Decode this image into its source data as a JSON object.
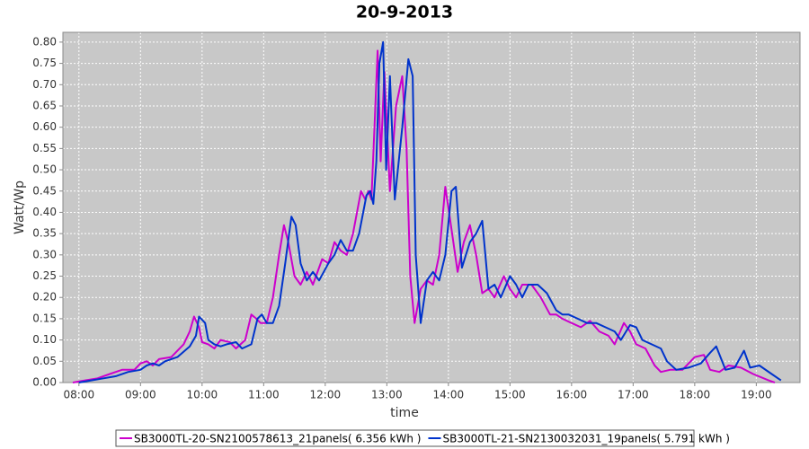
{
  "chart_data": {
    "type": "line",
    "title": "20-9-2013",
    "x_label": "time",
    "y_label": "Watt/Wp",
    "xlim": [
      7.74,
      19.71
    ],
    "ylim": [
      0,
      0.823
    ],
    "xticks": [
      {
        "value": 8,
        "label": "08:00"
      },
      {
        "value": 9,
        "label": "09:00"
      },
      {
        "value": 10,
        "label": "10:00"
      },
      {
        "value": 11,
        "label": "11:00"
      },
      {
        "value": 12,
        "label": "12:00"
      },
      {
        "value": 13,
        "label": "13:00"
      },
      {
        "value": 14,
        "label": "14:00"
      },
      {
        "value": 15,
        "label": "15:00"
      },
      {
        "value": 16,
        "label": "16:00"
      },
      {
        "value": 17,
        "label": "17:00"
      },
      {
        "value": 18,
        "label": "18:00"
      },
      {
        "value": 19,
        "label": "19:00"
      }
    ],
    "yticks": [
      {
        "value": 0,
        "label": "0.00"
      },
      {
        "value": 0.05,
        "label": "0.05"
      },
      {
        "value": 0.1,
        "label": "0.10"
      },
      {
        "value": 0.15,
        "label": "0.15"
      },
      {
        "value": 0.2,
        "label": "0.20"
      },
      {
        "value": 0.25,
        "label": "0.25"
      },
      {
        "value": 0.3,
        "label": "0.30"
      },
      {
        "value": 0.35,
        "label": "0.35"
      },
      {
        "value": 0.4,
        "label": "0.40"
      },
      {
        "value": 0.45,
        "label": "0.45"
      },
      {
        "value": 0.5,
        "label": "0.50"
      },
      {
        "value": 0.55,
        "label": "0.55"
      },
      {
        "value": 0.6,
        "label": "0.60"
      },
      {
        "value": 0.65,
        "label": "0.65"
      },
      {
        "value": 0.7,
        "label": "0.70"
      },
      {
        "value": 0.75,
        "label": "0.75"
      },
      {
        "value": 0.8,
        "label": "0.80"
      }
    ],
    "grid": true,
    "series": [
      {
        "name": "SB3000TL-20-SN2100578613_21panels( 6.356 kWh )",
        "color": "#cc00cc",
        "x": [
          7.9,
          8.1,
          8.3,
          8.5,
          8.7,
          8.9,
          9.0,
          9.1,
          9.2,
          9.3,
          9.5,
          9.7,
          9.8,
          9.87,
          9.95,
          10.0,
          10.1,
          10.2,
          10.3,
          10.45,
          10.55,
          10.7,
          10.8,
          10.88,
          10.95,
          11.05,
          11.15,
          11.25,
          11.33,
          11.4,
          11.5,
          11.6,
          11.7,
          11.8,
          11.95,
          12.05,
          12.15,
          12.25,
          12.35,
          12.45,
          12.58,
          12.65,
          12.7,
          12.75,
          12.8,
          12.85,
          12.9,
          12.96,
          13.05,
          13.15,
          13.25,
          13.32,
          13.38,
          13.45,
          13.55,
          13.65,
          13.75,
          13.85,
          13.95,
          14.05,
          14.15,
          14.25,
          14.35,
          14.45,
          14.55,
          14.65,
          14.75,
          14.9,
          15.0,
          15.1,
          15.2,
          15.35,
          15.5,
          15.65,
          15.75,
          15.85,
          16.0,
          16.15,
          16.3,
          16.45,
          16.6,
          16.7,
          16.85,
          16.95,
          17.05,
          17.2,
          17.35,
          17.45,
          17.6,
          17.8,
          18.0,
          18.15,
          18.25,
          18.4,
          18.55,
          18.75,
          18.95,
          19.2,
          19.3
        ],
        "values": [
          0.0,
          0.005,
          0.01,
          0.02,
          0.03,
          0.03,
          0.045,
          0.05,
          0.04,
          0.055,
          0.06,
          0.09,
          0.12,
          0.155,
          0.13,
          0.095,
          0.09,
          0.08,
          0.1,
          0.095,
          0.08,
          0.1,
          0.16,
          0.15,
          0.14,
          0.14,
          0.2,
          0.3,
          0.37,
          0.33,
          0.25,
          0.23,
          0.26,
          0.23,
          0.29,
          0.28,
          0.33,
          0.31,
          0.3,
          0.35,
          0.45,
          0.43,
          0.45,
          0.43,
          0.6,
          0.78,
          0.52,
          0.73,
          0.45,
          0.65,
          0.72,
          0.55,
          0.25,
          0.14,
          0.22,
          0.24,
          0.23,
          0.3,
          0.46,
          0.36,
          0.26,
          0.33,
          0.37,
          0.3,
          0.21,
          0.22,
          0.2,
          0.25,
          0.22,
          0.2,
          0.23,
          0.23,
          0.2,
          0.16,
          0.16,
          0.15,
          0.14,
          0.13,
          0.145,
          0.12,
          0.11,
          0.09,
          0.14,
          0.12,
          0.09,
          0.08,
          0.04,
          0.025,
          0.03,
          0.03,
          0.06,
          0.065,
          0.03,
          0.025,
          0.04,
          0.035,
          0.02,
          0.005,
          0.0
        ]
      },
      {
        "name": "SB3000TL-21-SN2130032031_19panels( 5.791 kWh )",
        "color": "#0033cc",
        "x": [
          8.0,
          8.2,
          8.4,
          8.6,
          8.8,
          9.0,
          9.1,
          9.2,
          9.3,
          9.4,
          9.6,
          9.8,
          9.9,
          9.95,
          10.05,
          10.1,
          10.2,
          10.3,
          10.4,
          10.55,
          10.65,
          10.8,
          10.9,
          10.97,
          11.05,
          11.15,
          11.25,
          11.35,
          11.45,
          11.52,
          11.6,
          11.7,
          11.8,
          11.9,
          12.05,
          12.15,
          12.25,
          12.35,
          12.45,
          12.55,
          12.67,
          12.73,
          12.78,
          12.83,
          12.88,
          12.94,
          12.99,
          13.05,
          13.13,
          13.25,
          13.35,
          13.42,
          13.47,
          13.55,
          13.65,
          13.75,
          13.85,
          13.95,
          14.05,
          14.12,
          14.22,
          14.35,
          14.45,
          14.55,
          14.65,
          14.75,
          14.85,
          15.0,
          15.1,
          15.2,
          15.3,
          15.45,
          15.6,
          15.75,
          15.85,
          15.95,
          16.1,
          16.25,
          16.4,
          16.55,
          16.7,
          16.8,
          16.95,
          17.05,
          17.15,
          17.3,
          17.45,
          17.55,
          17.7,
          17.9,
          18.1,
          18.25,
          18.35,
          18.5,
          18.65,
          18.8,
          18.9,
          19.05,
          19.25,
          19.4
        ],
        "values": [
          0.0,
          0.005,
          0.01,
          0.015,
          0.025,
          0.03,
          0.04,
          0.045,
          0.04,
          0.05,
          0.06,
          0.085,
          0.11,
          0.155,
          0.14,
          0.1,
          0.09,
          0.085,
          0.09,
          0.095,
          0.08,
          0.09,
          0.15,
          0.16,
          0.14,
          0.14,
          0.18,
          0.28,
          0.39,
          0.37,
          0.28,
          0.24,
          0.26,
          0.24,
          0.28,
          0.3,
          0.335,
          0.31,
          0.31,
          0.35,
          0.44,
          0.45,
          0.42,
          0.52,
          0.75,
          0.8,
          0.5,
          0.72,
          0.43,
          0.6,
          0.76,
          0.72,
          0.3,
          0.14,
          0.24,
          0.26,
          0.24,
          0.3,
          0.45,
          0.46,
          0.27,
          0.33,
          0.35,
          0.38,
          0.22,
          0.23,
          0.2,
          0.25,
          0.23,
          0.2,
          0.23,
          0.23,
          0.21,
          0.17,
          0.16,
          0.16,
          0.15,
          0.14,
          0.14,
          0.13,
          0.12,
          0.1,
          0.135,
          0.13,
          0.1,
          0.09,
          0.08,
          0.05,
          0.03,
          0.035,
          0.045,
          0.07,
          0.085,
          0.03,
          0.035,
          0.075,
          0.035,
          0.04,
          0.02,
          0.005
        ]
      }
    ]
  }
}
